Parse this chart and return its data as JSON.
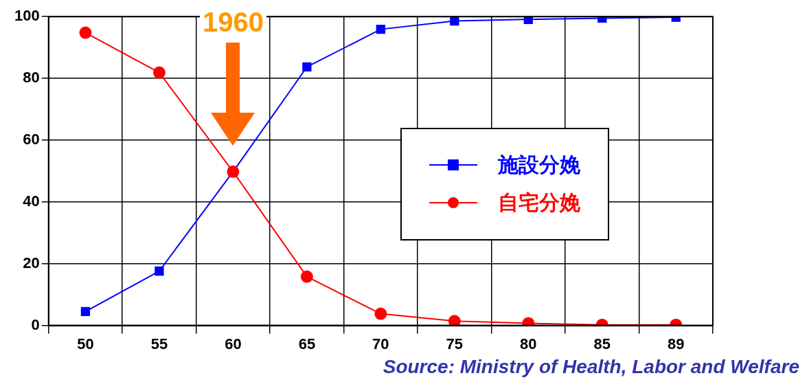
{
  "chart_data": {
    "type": "line",
    "categories": [
      "50",
      "55",
      "60",
      "65",
      "70",
      "75",
      "80",
      "85",
      "89"
    ],
    "series": [
      {
        "name": "施設分娩",
        "color": "#0000ff",
        "marker": "square",
        "values": [
          4.5,
          17.6,
          49.8,
          83.7,
          95.9,
          98.6,
          99.1,
          99.5,
          99.8
        ]
      },
      {
        "name": "自宅分娩",
        "color": "#ff0000",
        "marker": "circle",
        "values": [
          94.8,
          81.9,
          49.8,
          15.8,
          3.8,
          1.4,
          0.7,
          0.2,
          0.2
        ]
      }
    ],
    "ylim": [
      0,
      100
    ],
    "yticks": [
      0,
      20,
      40,
      60,
      80,
      100
    ],
    "grid": true,
    "legend": "right",
    "annotations": [
      "1960",
      "Source: Ministry of Health, Labor and Welfare"
    ]
  }
}
